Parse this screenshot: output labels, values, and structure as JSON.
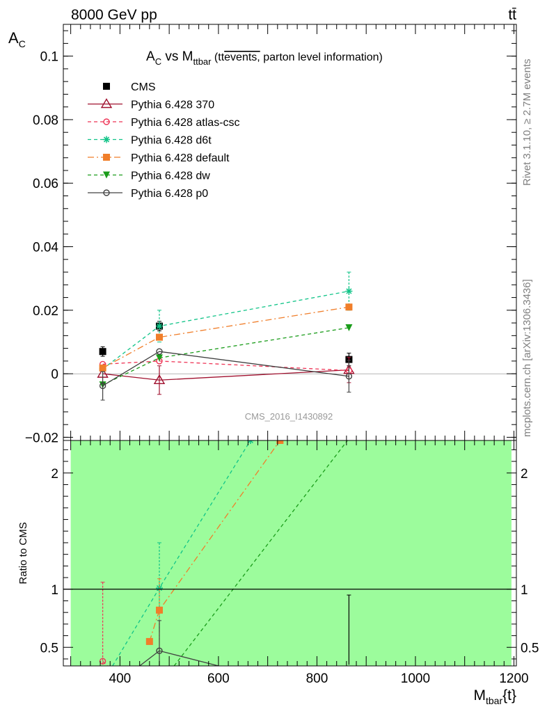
{
  "header": {
    "left_label": "8000 GeV pp",
    "right_label": "tt̄",
    "side_label_top": "Rivet 3.1.10, ≥ 2.7M events",
    "side_label_bottom": "mcplots.cern.ch [arXiv:1306.3436]"
  },
  "chart_data": [
    {
      "type": "line",
      "panel": "main",
      "title_parts": {
        "main": "A",
        "sub": "C",
        "vs": " vs M",
        "vs_sub": "ttbar",
        "tail_a": " (t",
        "tail_b": "t",
        "tail_c": "events,",
        "tail_d": " parton level information)"
      },
      "ylabel": "A",
      "ylabel_sub": "C",
      "watermark": "CMS_2016_I1430892",
      "ylim": [
        -0.021,
        0.11
      ],
      "xlim": [
        285,
        1205
      ],
      "yticks": [
        -0.02,
        0,
        0.02,
        0.04,
        0.06,
        0.08,
        0.1
      ],
      "ytick_labels": [
        "−0.02",
        "0",
        "0.02",
        "0.04",
        "0.06",
        "0.08",
        "0.1"
      ],
      "legend_position": "top-left",
      "series": [
        {
          "name": "CMS",
          "color": "#000000",
          "marker": "square",
          "line": "none",
          "x": [
            365,
            480,
            865
          ],
          "y": [
            0.007,
            0.015,
            0.0045
          ],
          "err": [
            0.0015,
            0.0015,
            0.002
          ]
        },
        {
          "name": "Pythia 6.428 370",
          "color": "#a0102e",
          "marker": "triangle-open",
          "line": "solid",
          "x": [
            365,
            480,
            865
          ],
          "y": [
            0.0,
            -0.002,
            0.0012
          ],
          "err": [
            0.0,
            0.0045,
            0.004
          ]
        },
        {
          "name": "Pythia 6.428 atlas-csc",
          "color": "#ee3355",
          "marker": "circle-open",
          "line": "dashed",
          "x": [
            365,
            480,
            865
          ],
          "y": [
            0.003,
            0.004,
            0.001
          ],
          "err": [
            0.0,
            0.0,
            0.0
          ]
        },
        {
          "name": "Pythia 6.428 d6t",
          "color": "#11c488",
          "marker": "star",
          "line": "dashed",
          "x": [
            365,
            480,
            865
          ],
          "y": [
            0.0015,
            0.015,
            0.026
          ],
          "err": [
            0.0,
            0.005,
            0.006
          ]
        },
        {
          "name": "Pythia 6.428 default",
          "color": "#f07e2a",
          "marker": "square",
          "line": "dashdot",
          "x": [
            365,
            480,
            865
          ],
          "y": [
            0.0018,
            0.0115,
            0.021
          ],
          "err": [
            0.0,
            0.0,
            0.0
          ]
        },
        {
          "name": "Pythia 6.428 dw",
          "color": "#1a9c1a",
          "marker": "triangle-down",
          "line": "dashed",
          "x": [
            365,
            480,
            865
          ],
          "y": [
            -0.0035,
            0.005,
            0.0145
          ],
          "err": [
            0.0,
            0.0,
            0.0
          ]
        },
        {
          "name": "Pythia 6.428 p0",
          "color": "#404040",
          "marker": "circle-open",
          "line": "solid",
          "x": [
            365,
            480,
            865
          ],
          "y": [
            -0.0038,
            0.007,
            -0.0008
          ],
          "err": [
            0.0045,
            0.0,
            0.005
          ]
        }
      ]
    },
    {
      "type": "line",
      "panel": "ratio",
      "ylabel": "Ratio to CMS",
      "xlabel": "M",
      "xlabel_sub": "tbar",
      "xlabel_tail": "{t}",
      "ylim": [
        0.34,
        2.28
      ],
      "xlim": [
        285,
        1205
      ],
      "yticks": [
        0.5,
        1,
        2
      ],
      "ytick_labels": [
        "0.5",
        "1",
        "2"
      ],
      "xticks": [
        400,
        600,
        800,
        1000,
        1200
      ],
      "xtick_labels": [
        "400",
        "600",
        "800",
        "1000",
        "1200"
      ],
      "band": {
        "x": [
          300,
          1195
        ],
        "color": "#9cfc9c"
      },
      "reference_line": 1,
      "series": [
        {
          "name": "Pythia 6.428 atlas-csc",
          "color": "#ee3355",
          "line": "dashed",
          "marker": "circle-open",
          "x": [
            365,
            410
          ],
          "y": [
            0.38,
            0.2
          ],
          "err": [
            0.68,
            0.0
          ]
        },
        {
          "name": "Pythia 6.428 d6t",
          "color": "#11c488",
          "line": "dashed",
          "marker": "star",
          "x": [
            385,
            480,
            665
          ],
          "y": [
            0.34,
            1.01,
            2.28
          ],
          "err": [
            0.0,
            0.39,
            0.0
          ]
        },
        {
          "name": "Pythia 6.428 default",
          "color": "#f07e2a",
          "line": "dashdot",
          "marker": "square",
          "x": [
            460,
            480,
            725
          ],
          "y": [
            0.55,
            0.82,
            2.28
          ],
          "err": [
            0.0,
            0.27,
            0.0
          ]
        },
        {
          "name": "Pythia 6.428 dw",
          "color": "#1a9c1a",
          "line": "dashed",
          "marker": "none",
          "x": [
            510,
            862
          ],
          "y": [
            0.34,
            2.28
          ],
          "err": [
            0.0,
            0.0
          ]
        },
        {
          "name": "Pythia 6.428 p0",
          "color": "#404040",
          "line": "solid",
          "marker": "circle-open",
          "x": [
            440,
            480,
            600
          ],
          "y": [
            0.34,
            0.47,
            0.34
          ],
          "err": [
            0.0,
            0.26,
            0.0
          ]
        },
        {
          "name": "CMS",
          "color": "#000000",
          "line": "none",
          "marker": "none",
          "x": [
            865
          ],
          "y": [
            0.65
          ],
          "err": [
            0.3
          ]
        }
      ]
    }
  ]
}
